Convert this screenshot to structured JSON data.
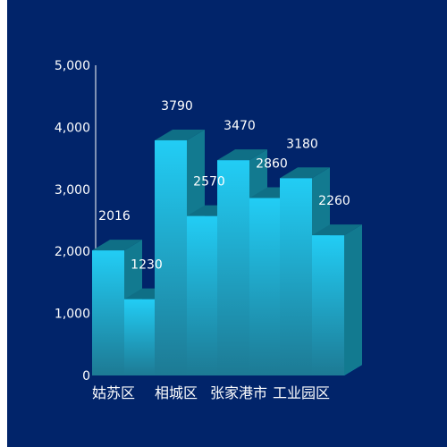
{
  "colors": {
    "background": "#01246a",
    "bar_front_top": "#22cdf5",
    "bar_front_bottom": "#1d7a94",
    "bar_top": "#0f6f86",
    "bar_side": "#127a90",
    "floor": "#27d6ff"
  },
  "chart_data": {
    "type": "bar",
    "title": "",
    "xlabel": "",
    "ylabel": "",
    "ylim": [
      0,
      5000
    ],
    "yticks": [
      0,
      1000,
      2000,
      3000,
      4000,
      5000
    ],
    "ytick_labels": [
      "0",
      "1,000",
      "2,000",
      "3,000",
      "4,000",
      "5,000"
    ],
    "categories": [
      "姑苏区",
      "相城区",
      "张家港市",
      "工业园区"
    ],
    "series": [
      {
        "values": [
          2016,
          3790,
          3470,
          3180
        ]
      },
      {
        "values": [
          1230,
          2570,
          2860,
          2260
        ]
      }
    ],
    "grid": false,
    "legend": "none",
    "style": "3d-cuboid"
  }
}
